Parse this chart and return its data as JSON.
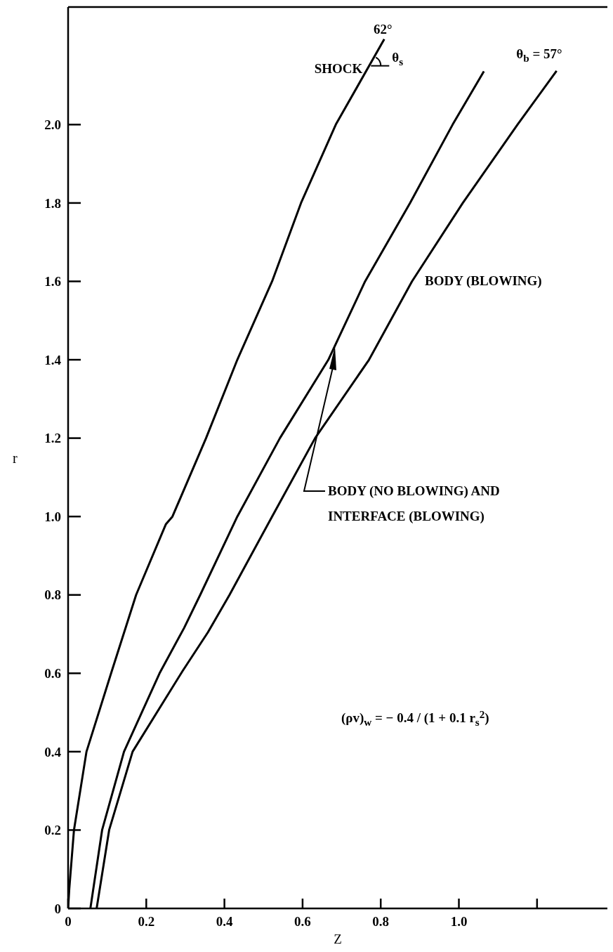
{
  "chart_data": {
    "type": "line",
    "xlabel": "Z",
    "ylabel": "r",
    "xlim": [
      0,
      1.38
    ],
    "ylim": [
      0,
      2.3
    ],
    "xticks": [
      0,
      0.2,
      0.4,
      0.6,
      0.8,
      {
        "value": 1,
        "label": "1.0"
      },
      {
        "value": 1.2,
        "label": null
      }
    ],
    "yticks": [
      0,
      0.2,
      0.4,
      0.6,
      0.8,
      {
        "value": 1,
        "label": "1.0"
      },
      1.2,
      1.4,
      1.6,
      1.8,
      {
        "value": 2,
        "label": "2.0"
      }
    ],
    "marker": "none",
    "line_style": "solid",
    "series": [
      {
        "color": "#000000",
        "x": [
          0,
          0.003,
          0.015,
          0.047,
          0.11,
          0.174,
          0.25,
          0.267,
          0.353,
          0.433,
          0.522,
          0.596,
          0.685,
          0.809
        ],
        "values": [
          0,
          0.05,
          0.2,
          0.4,
          0.6,
          0.8,
          0.98,
          1.0,
          1.2,
          1.4,
          1.6,
          1.8,
          2.0,
          2.218
        ]
      },
      {
        "color": "#000000",
        "x": [
          0.057,
          0.087,
          0.143,
          0.234,
          0.297,
          0.338,
          0.433,
          0.542,
          0.666,
          0.76,
          0.875,
          0.984,
          1.064
        ],
        "values": [
          0,
          0.2,
          0.4,
          0.6,
          0.716,
          0.8,
          1.0,
          1.2,
          1.4,
          1.6,
          1.8,
          2.0,
          2.136
        ]
      },
      {
        "color": "#000000",
        "x": [
          0.073,
          0.105,
          0.165,
          0.293,
          0.358,
          0.413,
          0.522,
          0.632,
          0.77,
          0.88,
          1.01,
          1.15,
          1.25
        ],
        "values": [
          0,
          0.2,
          0.4,
          0.606,
          0.705,
          0.8,
          1.0,
          1.2,
          1.4,
          1.6,
          1.8,
          2.0,
          2.137
        ]
      }
    ],
    "annotations": [
      {
        "text": "62°",
        "x": 0.809,
        "y": 2.218
      },
      {
        "text": "θ$_{s}$",
        "x": 0.775,
        "y": 2.15
      },
      {
        "text": "SHOCK",
        "x": 0.775,
        "y": 2.15
      },
      {
        "text": "θ$_{b}$ = 57°",
        "x": 1.25,
        "y": 2.137
      },
      "BODY (BLOWING)",
      "BODY (NO BLOWING) AND INTERFACE (BLOWING)",
      "(ρv)$_{w}$ = − 0.4 / (1 + 0.1 r$_{s}$$^{2}$)"
    ]
  }
}
